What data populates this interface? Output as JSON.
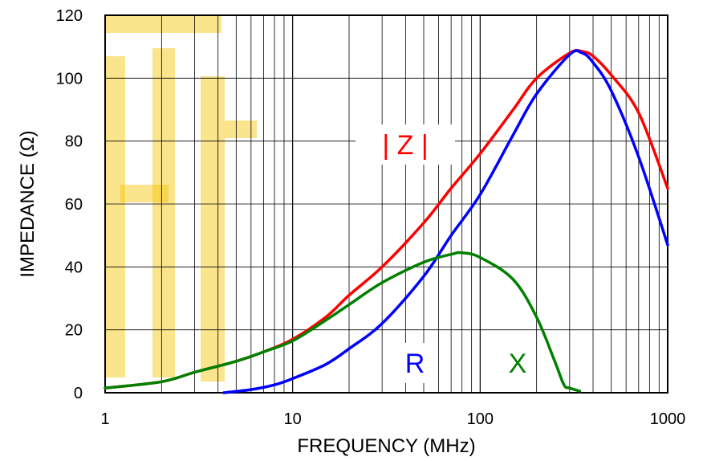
{
  "chart_data": {
    "type": "line",
    "title": "",
    "xlabel": "FREQUENCY (MHz)",
    "ylabel": "IMPEDANCE (Ω)",
    "x_scale": "log",
    "xlim": [
      1,
      1000
    ],
    "ylim": [
      0,
      120
    ],
    "x_ticks": [
      "1",
      "10",
      "100",
      "1000"
    ],
    "y_ticks": [
      "0",
      "20",
      "40",
      "60",
      "80",
      "100",
      "120"
    ],
    "grid": true,
    "colors": {
      "Z": "#ff0000",
      "R": "#0000ff",
      "X": "#008000",
      "watermark": "#f5c400"
    },
    "series": [
      {
        "name": "| Z |",
        "color": "#ff0000",
        "points": [
          [
            1,
            1.5
          ],
          [
            2,
            3.5
          ],
          [
            3,
            6.5
          ],
          [
            5,
            10
          ],
          [
            7,
            13
          ],
          [
            10,
            17
          ],
          [
            15,
            24
          ],
          [
            20,
            31
          ],
          [
            30,
            40
          ],
          [
            50,
            54
          ],
          [
            70,
            65
          ],
          [
            100,
            76
          ],
          [
            150,
            90
          ],
          [
            200,
            100
          ],
          [
            300,
            108
          ],
          [
            350,
            108.5
          ],
          [
            400,
            107
          ],
          [
            500,
            101
          ],
          [
            700,
            89
          ],
          [
            1000,
            65
          ]
        ]
      },
      {
        "name": "R",
        "color": "#0000ff",
        "points": [
          [
            4.3,
            0
          ],
          [
            6,
            1
          ],
          [
            8,
            2.5
          ],
          [
            10,
            4.5
          ],
          [
            15,
            9
          ],
          [
            20,
            14
          ],
          [
            30,
            22
          ],
          [
            50,
            37
          ],
          [
            70,
            50
          ],
          [
            100,
            63
          ],
          [
            150,
            82
          ],
          [
            200,
            95
          ],
          [
            300,
            107.5
          ],
          [
            350,
            108
          ],
          [
            400,
            105
          ],
          [
            500,
            96
          ],
          [
            700,
            75
          ],
          [
            1000,
            47
          ]
        ]
      },
      {
        "name": "X",
        "color": "#008000",
        "points": [
          [
            1,
            1.5
          ],
          [
            2,
            3.5
          ],
          [
            3,
            6.5
          ],
          [
            5,
            10
          ],
          [
            7,
            13
          ],
          [
            10,
            16.5
          ],
          [
            15,
            23
          ],
          [
            20,
            28
          ],
          [
            30,
            35
          ],
          [
            50,
            41.5
          ],
          [
            70,
            44
          ],
          [
            80,
            44.5
          ],
          [
            100,
            43
          ],
          [
            150,
            36
          ],
          [
            200,
            24
          ],
          [
            250,
            10
          ],
          [
            280,
            2.5
          ],
          [
            300,
            1.5
          ],
          [
            340,
            0.5
          ]
        ]
      }
    ]
  }
}
